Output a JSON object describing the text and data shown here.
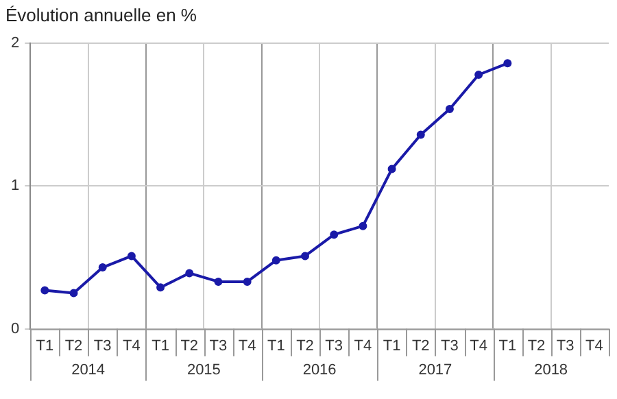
{
  "chart_data": {
    "type": "line",
    "title": "Évolution annuelle en %",
    "categories": [
      "T1",
      "T2",
      "T3",
      "T4",
      "T1",
      "T2",
      "T3",
      "T4",
      "T1",
      "T2",
      "T3",
      "T4",
      "T1",
      "T2",
      "T3",
      "T4",
      "T1",
      "T2",
      "T3",
      "T4"
    ],
    "series": [
      {
        "color": "#1a1aa8",
        "values": [
          0.27,
          0.25,
          0.43,
          0.51,
          0.29,
          0.39,
          0.33,
          0.33,
          0.48,
          0.51,
          0.66,
          0.72,
          1.12,
          1.36,
          1.54,
          1.78,
          1.86,
          null,
          null,
          null
        ]
      }
    ],
    "annotations": [
      "2014",
      "2015",
      "2016",
      "2017",
      "2018"
    ],
    "ylim": [
      0,
      2
    ],
    "yticks": [
      0,
      1,
      2
    ],
    "grid": true,
    "legend": false,
    "marker": "circle",
    "line_style": "solid"
  }
}
